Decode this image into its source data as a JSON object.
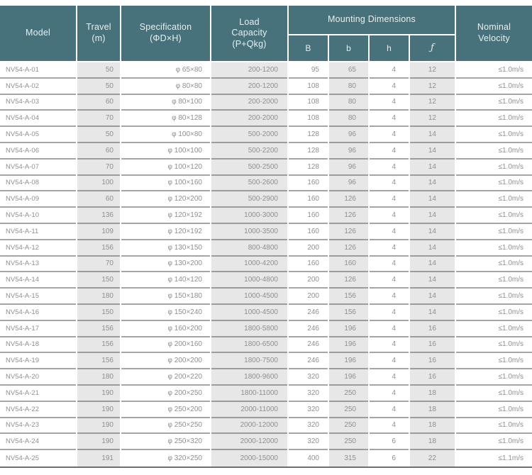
{
  "colors": {
    "header_bg": "#47727B",
    "header_text": "#E9EFEF",
    "band_bg": "#E7E7E7",
    "row_line": "#A5A5A5",
    "data_text": "#8F8F8F"
  },
  "table": {
    "headers": {
      "model": "Model",
      "travel": "Travel\n(m)",
      "specification": "Specification\n(ΦD×H)",
      "load_capacity": "Load\nCapacity\n(P+Qkg)",
      "mounting": "Mounting Dimensions",
      "sub_B": "B",
      "sub_b": "b",
      "sub_h": "h",
      "sub_f": "ƒ",
      "nominal_velocity": "Nominal\nVelocity"
    },
    "rows": [
      {
        "model": "NV54-A-01",
        "travel": "50",
        "spec": "φ 65×80",
        "load": "200-1200",
        "B": "95",
        "b": "65",
        "h": "4",
        "f": "12",
        "velocity": "≤1.0m/s"
      },
      {
        "model": "NV54-A-02",
        "travel": "50",
        "spec": "φ 80×80",
        "load": "200-1200",
        "B": "108",
        "b": "80",
        "h": "4",
        "f": "12",
        "velocity": "≤1.0m/s"
      },
      {
        "model": "NV54-A-03",
        "travel": "60",
        "spec": "φ 80×100",
        "load": "200-2000",
        "B": "108",
        "b": "80",
        "h": "4",
        "f": "12",
        "velocity": "≤1.0m/s"
      },
      {
        "model": "NV54-A-04",
        "travel": "70",
        "spec": "φ 80×128",
        "load": "200-2000",
        "B": "108",
        "b": "80",
        "h": "4",
        "f": "12",
        "velocity": "≤1.0m/s"
      },
      {
        "model": "NV54-A-05",
        "travel": "50",
        "spec": "φ 100×80",
        "load": "500-2000",
        "B": "128",
        "b": "96",
        "h": "4",
        "f": "14",
        "velocity": "≤1.0m/s"
      },
      {
        "model": "NV54-A-06",
        "travel": "60",
        "spec": "φ 100×100",
        "load": "500-2200",
        "B": "128",
        "b": "96",
        "h": "4",
        "f": "14",
        "velocity": "≤1.0m/s"
      },
      {
        "model": "NV54-A-07",
        "travel": "70",
        "spec": "φ 100×120",
        "load": "500-2500",
        "B": "128",
        "b": "96",
        "h": "4",
        "f": "14",
        "velocity": "≤1.0m/s"
      },
      {
        "model": "NV54-A-08",
        "travel": "100",
        "spec": "φ 100×160",
        "load": "500-2600",
        "B": "160",
        "b": "96",
        "h": "4",
        "f": "14",
        "velocity": "≤1.0m/s"
      },
      {
        "model": "NV54-A-09",
        "travel": "60",
        "spec": "φ 120×200",
        "load": "500-2900",
        "B": "160",
        "b": "126",
        "h": "4",
        "f": "14",
        "velocity": "≤1.0m/s"
      },
      {
        "model": "NV54-A-10",
        "travel": "136",
        "spec": "φ 120×192",
        "load": "1000-3000",
        "B": "160",
        "b": "126",
        "h": "4",
        "f": "14",
        "velocity": "≤1.0m/s"
      },
      {
        "model": "NV54-A-11",
        "travel": "109",
        "spec": "φ 120×192",
        "load": "1000-3500",
        "B": "160",
        "b": "126",
        "h": "4",
        "f": "14",
        "velocity": "≤1.0m/s"
      },
      {
        "model": "NV54-A-12",
        "travel": "156",
        "spec": "φ 130×150",
        "load": "800-4800",
        "B": "200",
        "b": "126",
        "h": "4",
        "f": "14",
        "velocity": "≤1.0m/s"
      },
      {
        "model": "NV54-A-13",
        "travel": "70",
        "spec": "φ 130×200",
        "load": "1000-4200",
        "B": "160",
        "b": "160",
        "h": "4",
        "f": "14",
        "velocity": "≤1.0m/s"
      },
      {
        "model": "NV54-A-14",
        "travel": "150",
        "spec": "φ 140×120",
        "load": "1000-4800",
        "B": "200",
        "b": "126",
        "h": "4",
        "f": "14",
        "velocity": "≤1.0m/s"
      },
      {
        "model": "NV54-A-15",
        "travel": "180",
        "spec": "φ 150×180",
        "load": "1000-4500",
        "B": "200",
        "b": "156",
        "h": "4",
        "f": "14",
        "velocity": "≤1.0m/s"
      },
      {
        "model": "NV54-A-16",
        "travel": "150",
        "spec": "φ 150×240",
        "load": "1000-4500",
        "B": "246",
        "b": "156",
        "h": "4",
        "f": "14",
        "velocity": "≤1.0m/s"
      },
      {
        "model": "NV54-A-17",
        "travel": "156",
        "spec": "φ 160×200",
        "load": "1800-5800",
        "B": "246",
        "b": "196",
        "h": "4",
        "f": "16",
        "velocity": "≤1.0m/s"
      },
      {
        "model": "NV54-A-18",
        "travel": "156",
        "spec": "φ 200×160",
        "load": "1800-6500",
        "B": "246",
        "b": "196",
        "h": "4",
        "f": "16",
        "velocity": "≤1.0m/s"
      },
      {
        "model": "NV54-A-19",
        "travel": "156",
        "spec": "φ 200×200",
        "load": "1800-7500",
        "B": "246",
        "b": "196",
        "h": "4",
        "f": "16",
        "velocity": "≤1.0m/s"
      },
      {
        "model": "NV54-A-20",
        "travel": "180",
        "spec": "φ 200×220",
        "load": "1800-9600",
        "B": "320",
        "b": "196",
        "h": "4",
        "f": "16",
        "velocity": "≤1.0m/s"
      },
      {
        "model": "NV54-A-21",
        "travel": "190",
        "spec": "φ 200×250",
        "load": "1800-11000",
        "B": "320",
        "b": "250",
        "h": "4",
        "f": "18",
        "velocity": "≤1.0m/s"
      },
      {
        "model": "NV54-A-22",
        "travel": "190",
        "spec": "φ 250×200",
        "load": "2000-11000",
        "B": "320",
        "b": "250",
        "h": "4",
        "f": "18",
        "velocity": "≤1.0m/s"
      },
      {
        "model": "NV54-A-23",
        "travel": "190",
        "spec": "φ 250×250",
        "load": "2000-12000",
        "B": "320",
        "b": "250",
        "h": "4",
        "f": "18",
        "velocity": "≤1.0m/s"
      },
      {
        "model": "NV54-A-24",
        "travel": "190",
        "spec": "φ 250×320",
        "load": "2000-12000",
        "B": "320",
        "b": "250",
        "h": "6",
        "f": "18",
        "velocity": "≤1.0m/s"
      },
      {
        "model": "NV54-A-25",
        "travel": "191",
        "spec": "φ 320×250",
        "load": "2000-15000",
        "B": "400",
        "b": "315",
        "h": "6",
        "f": "22",
        "velocity": "≤1.1m/s"
      }
    ]
  }
}
